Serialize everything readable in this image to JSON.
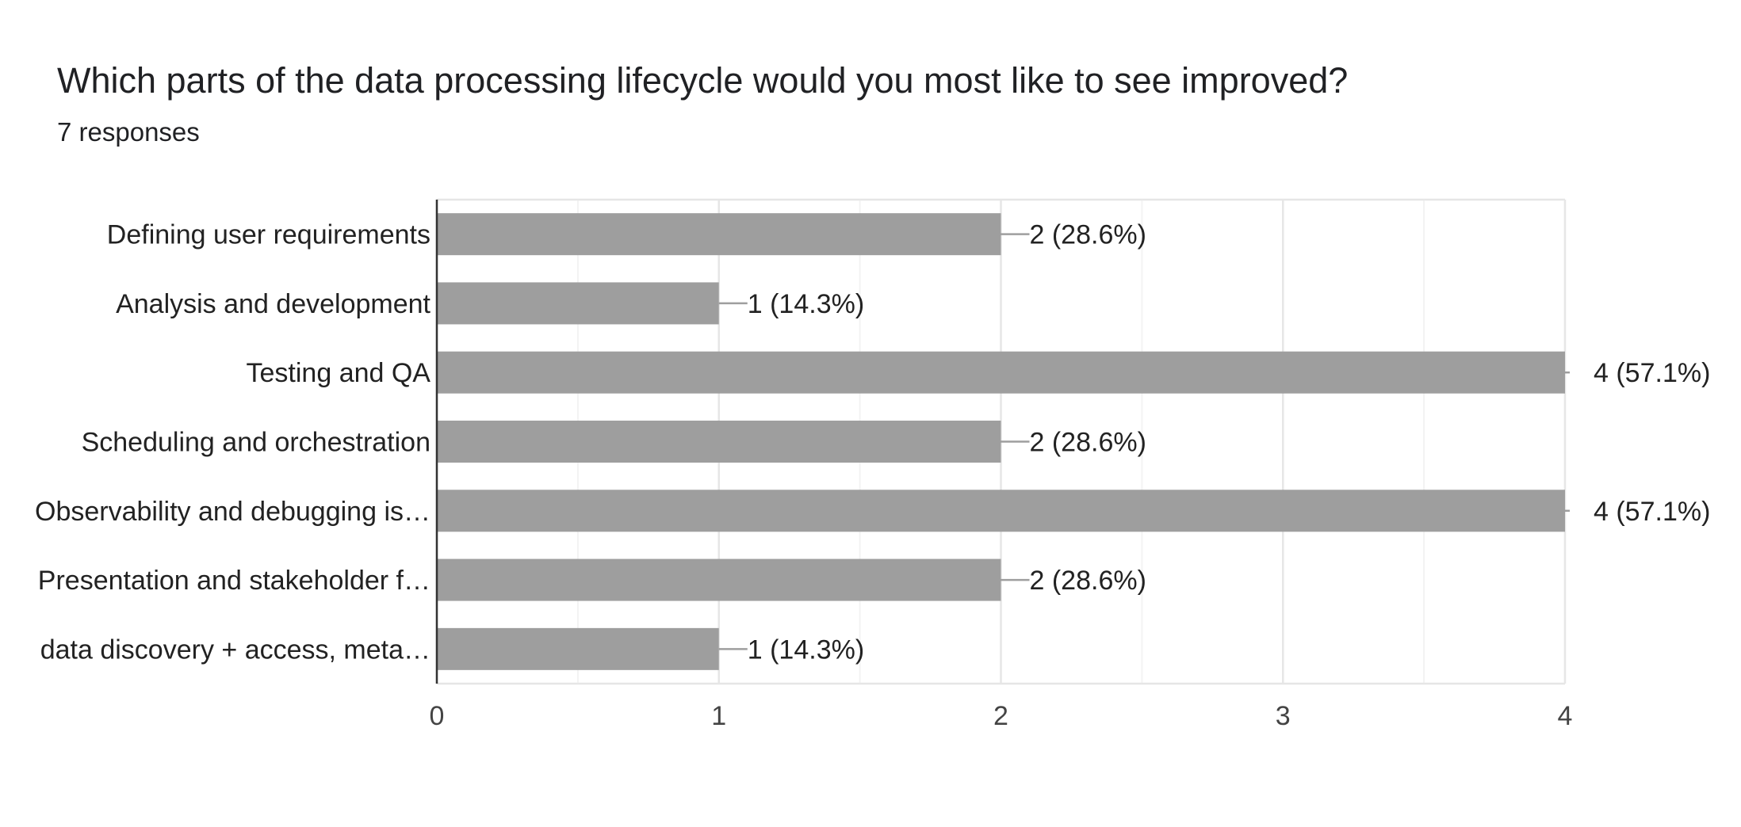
{
  "chart_data": {
    "type": "bar",
    "orientation": "horizontal",
    "title": "Which parts of the data processing lifecycle would you most like to see improved?",
    "subtitle": "7 responses",
    "categories": [
      "Defining user requirements",
      "Analysis and development",
      "Testing and QA",
      "Scheduling and orchestration",
      "Observability and debugging is…",
      "Presentation and stakeholder f…",
      "data discovery + access, meta…"
    ],
    "values": [
      2,
      1,
      4,
      2,
      4,
      2,
      1
    ],
    "data_labels": [
      "2 (28.6%)",
      "1 (14.3%)",
      "4 (57.1%)",
      "2 (28.6%)",
      "4 (57.1%)",
      "2 (28.6%)",
      "1 (14.3%)"
    ],
    "xlim": [
      0,
      4
    ],
    "xticks": [
      "0",
      "1",
      "2",
      "3",
      "4"
    ],
    "grid": true,
    "bar_color": "#9e9e9e"
  }
}
